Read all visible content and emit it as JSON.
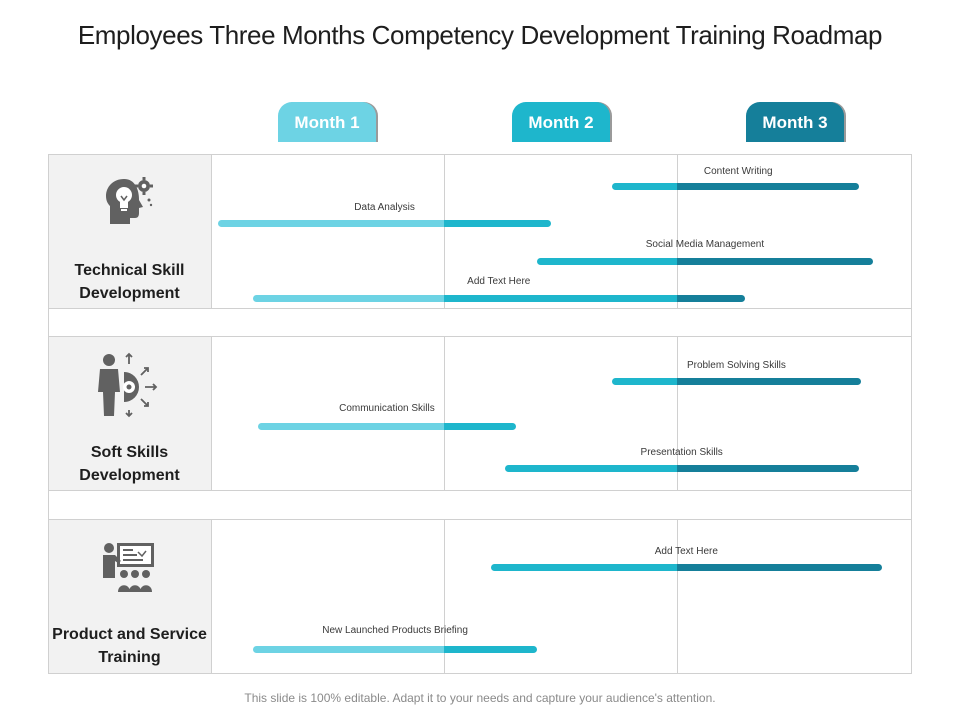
{
  "title": "Employees Three Months Competency Development Training Roadmap",
  "months": [
    "Month 1",
    "Month 2",
    "Month 3"
  ],
  "month_colors": [
    "#6dd3e4",
    "#1eb6cc",
    "#157f9a"
  ],
  "categories": [
    {
      "label": "Technical Skill Development",
      "icon": "head-lightbulb-gear-icon"
    },
    {
      "label": "Soft Skills Development",
      "icon": "person-target-arrows-icon"
    },
    {
      "label": "Product and Service Training",
      "icon": "presenter-audience-icon"
    }
  ],
  "chart_data": {
    "type": "gantt",
    "time_unit": "month",
    "range": [
      0,
      3
    ],
    "tasks": [
      {
        "label": "Content Writing",
        "category": "Technical Skill Development",
        "start": 1.72,
        "end": 2.78
      },
      {
        "label": "Data Analysis",
        "category": "Technical Skill Development",
        "start": 0.03,
        "end": 1.46
      },
      {
        "label": "Social Media Management",
        "category": "Technical Skill Development",
        "start": 1.4,
        "end": 2.84
      },
      {
        "label": "Add Text Here",
        "category": "Technical Skill Development",
        "start": 0.18,
        "end": 2.29
      },
      {
        "label": "Problem Solving Skills",
        "category": "Soft Skills Development",
        "start": 1.72,
        "end": 2.79
      },
      {
        "label": "Communication Skills",
        "category": "Soft Skills Development",
        "start": 0.2,
        "end": 1.31
      },
      {
        "label": "Presentation Skills",
        "category": "Soft Skills Development",
        "start": 1.26,
        "end": 2.78
      },
      {
        "label": "Add Text Here",
        "category": "Product and Service Training",
        "start": 1.2,
        "end": 2.88
      },
      {
        "label": "New Launched Products Briefing",
        "category": "Product and Service Training",
        "start": 0.18,
        "end": 1.4
      }
    ]
  },
  "footer": "This slide is 100% editable. Adapt it to your needs and capture your audience's attention."
}
